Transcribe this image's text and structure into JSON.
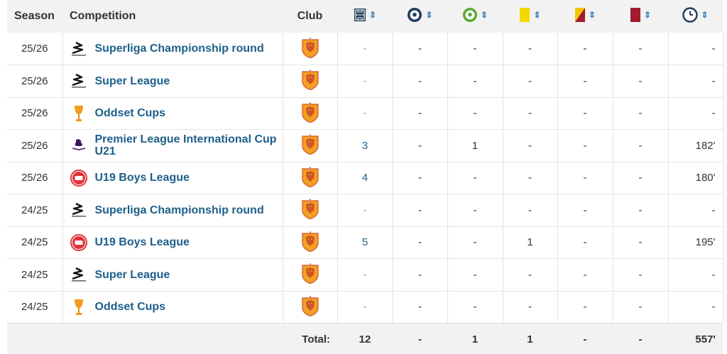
{
  "header": {
    "season": "Season",
    "competition": "Competition",
    "club": "Club",
    "icons": [
      "appearances-icon",
      "goals-icon",
      "assists-icon",
      "yellow-card-icon",
      "second-yellow-icon",
      "red-card-icon",
      "minutes-icon"
    ],
    "sort_glyph": "⇕"
  },
  "rows": [
    {
      "season": "25/26",
      "competition": "Superliga Championship round",
      "logo": "superliga-logo",
      "apps": "-",
      "goals": "-",
      "assists": "-",
      "yellow": "-",
      "second_yellow": "-",
      "red": "-",
      "minutes": "-"
    },
    {
      "season": "25/26",
      "competition": "Super League",
      "logo": "superliga-logo",
      "apps": "-",
      "goals": "-",
      "assists": "-",
      "yellow": "-",
      "second_yellow": "-",
      "red": "-",
      "minutes": "-"
    },
    {
      "season": "25/26",
      "competition": "Oddset Cups",
      "logo": "cup-logo",
      "apps": "-",
      "goals": "-",
      "assists": "-",
      "yellow": "-",
      "second_yellow": "-",
      "red": "-",
      "minutes": "-"
    },
    {
      "season": "25/26",
      "competition": "Premier League International Cup U21",
      "logo": "premier-league-logo",
      "apps": "3",
      "goals": "-",
      "assists": "1",
      "yellow": "-",
      "second_yellow": "-",
      "red": "-",
      "minutes": "182'"
    },
    {
      "season": "25/26",
      "competition": "U19 Boys League",
      "logo": "dbu-logo",
      "apps": "4",
      "goals": "-",
      "assists": "-",
      "yellow": "-",
      "second_yellow": "-",
      "red": "-",
      "minutes": "180'"
    },
    {
      "season": "24/25",
      "competition": "Superliga Championship round",
      "logo": "superliga-logo",
      "apps": "-",
      "goals": "-",
      "assists": "-",
      "yellow": "-",
      "second_yellow": "-",
      "red": "-",
      "minutes": "-"
    },
    {
      "season": "24/25",
      "competition": "U19 Boys League",
      "logo": "dbu-logo",
      "apps": "5",
      "goals": "-",
      "assists": "-",
      "yellow": "1",
      "second_yellow": "-",
      "red": "-",
      "minutes": "195'"
    },
    {
      "season": "24/25",
      "competition": "Super League",
      "logo": "superliga-logo",
      "apps": "-",
      "goals": "-",
      "assists": "-",
      "yellow": "-",
      "second_yellow": "-",
      "red": "-",
      "minutes": "-"
    },
    {
      "season": "24/25",
      "competition": "Oddset Cups",
      "logo": "cup-logo",
      "apps": "-",
      "goals": "-",
      "assists": "-",
      "yellow": "-",
      "second_yellow": "-",
      "red": "-",
      "minutes": "-"
    }
  ],
  "totals": {
    "label": "Total:",
    "apps": "12",
    "goals": "-",
    "assists": "1",
    "yellow": "1",
    "second_yellow": "-",
    "red": "-",
    "minutes": "557'"
  },
  "colors": {
    "link": "#1d5f8a",
    "header_bg": "#f2f2f2",
    "club_orange": "#f2a024",
    "club_red": "#d0532a"
  }
}
